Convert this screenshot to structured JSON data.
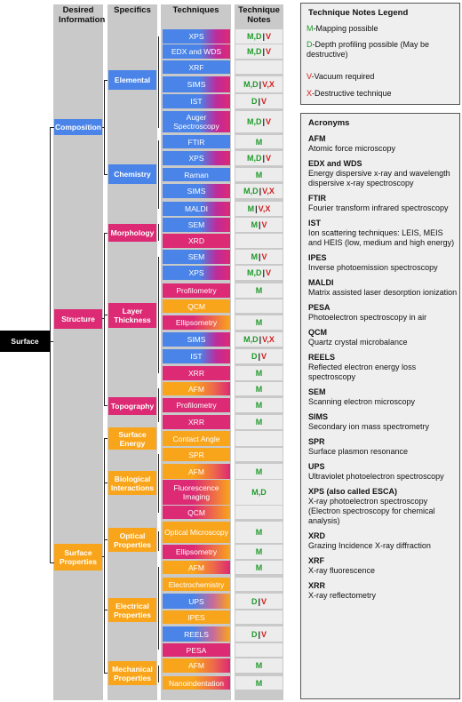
{
  "headers": {
    "desired": "Desired Information",
    "specifics": "Specifics",
    "techniques": "Techniques",
    "notes": "Technique Notes"
  },
  "root": "Surface",
  "categories": [
    "Composition",
    "Structure",
    "Surface Properties"
  ],
  "specifics": [
    "Elemental",
    "Chemistry",
    "Morphology",
    "Layer Thickness",
    "Topography",
    "Surface Energy",
    "Biological Interactions",
    "Optical Properties",
    "Electrical Properties",
    "Mechanical Properties"
  ],
  "techniques": [
    {
      "label": "XPS",
      "note": "M,D | V"
    },
    {
      "label": "EDX and WDS",
      "note": "M,D | V"
    },
    {
      "label": "XRF",
      "note": ""
    },
    {
      "label": "SIMS",
      "note": "M,D | V,X"
    },
    {
      "label": "IST",
      "note": "D | V"
    },
    {
      "label": "Auger Spectroscopy",
      "note": "M,D | V"
    },
    {
      "label": "FTIR",
      "note": "M"
    },
    {
      "label": "XPS",
      "note": "M,D | V"
    },
    {
      "label": "Raman",
      "note": "M"
    },
    {
      "label": "SIMS",
      "note": "M,D | V,X"
    },
    {
      "label": "MALDI",
      "note": "M | V,X"
    },
    {
      "label": "SEM",
      "note": "M | V"
    },
    {
      "label": "XRD",
      "note": ""
    },
    {
      "label": "SEM",
      "note": "M | V"
    },
    {
      "label": "XPS",
      "note": "M,D | V"
    },
    {
      "label": "Profilometry",
      "note": "M"
    },
    {
      "label": "QCM",
      "note": ""
    },
    {
      "label": "Ellipsometry",
      "note": "M"
    },
    {
      "label": "SIMS",
      "note": "M,D | V,X"
    },
    {
      "label": "IST",
      "note": "D | V"
    },
    {
      "label": "XRR",
      "note": "M"
    },
    {
      "label": "AFM",
      "note": "M"
    },
    {
      "label": "Profilometry",
      "note": "M"
    },
    {
      "label": "XRR",
      "note": "M"
    },
    {
      "label": "Contact Angle",
      "note": ""
    },
    {
      "label": "SPR",
      "note": ""
    },
    {
      "label": "AFM",
      "note": "M"
    },
    {
      "label": "Fluorescence Imaging",
      "note": "M,D"
    },
    {
      "label": "QCM",
      "note": ""
    },
    {
      "label": "Optical Microscopy",
      "note": "M"
    },
    {
      "label": "Ellipsometry",
      "note": "M"
    },
    {
      "label": "AFM",
      "note": "M"
    },
    {
      "label": "Electrochemistry",
      "note": ""
    },
    {
      "label": "UPS",
      "note": "D | V"
    },
    {
      "label": "IPES",
      "note": ""
    },
    {
      "label": "REELS",
      "note": "D | V"
    },
    {
      "label": "PESA",
      "note": ""
    },
    {
      "label": "AFM",
      "note": "M"
    },
    {
      "label": "Nanoindentation",
      "note": "M"
    }
  ],
  "legend": {
    "title": "Technique Notes Legend",
    "items": [
      {
        "key": "M",
        "text": "-Mapping possible"
      },
      {
        "key": "D",
        "text": "-Depth profiling possible (May be destructive)"
      },
      {
        "key": "V",
        "text": "-Vacuum required"
      },
      {
        "key": "X",
        "text": "-Destructive technique"
      }
    ]
  },
  "acronyms": {
    "title": "Acronyms",
    "items": [
      {
        "term": "AFM",
        "def": "Atomic force microscopy"
      },
      {
        "term": "EDX and WDS",
        "def": "Energy dispersive x-ray and wavelength dispersive x-ray spectroscopy"
      },
      {
        "term": "FTIR",
        "def": "Fourier transform infrared spectroscopy"
      },
      {
        "term": "IST",
        "def": "Ion scattering techniques: LEIS, MEIS and HEIS (low, medium and high energy)"
      },
      {
        "term": "IPES",
        "def": "Inverse photoemission spectroscopy"
      },
      {
        "term": "MALDI",
        "def": "Matrix assisted laser desorption ionization"
      },
      {
        "term": "PESA",
        "def": "Photoelectron spectroscopy in air"
      },
      {
        "term": "QCM",
        "def": "Quartz crystal microbalance"
      },
      {
        "term": "REELS",
        "def": "Reflected electron energy loss spectroscopy"
      },
      {
        "term": "SEM",
        "def": "Scanning electron microscopy"
      },
      {
        "term": "SIMS",
        "def": "Secondary ion mass spectrometry"
      },
      {
        "term": "SPR",
        "def": "Surface plasmon resonance"
      },
      {
        "term": "UPS",
        "def": "Ultraviolet photoelectron spectroscopy"
      },
      {
        "term": "XPS (also called ESCA)",
        "def": "X-ray photoelectron spectroscopy (Electron spectroscopy for chemical analysis)"
      },
      {
        "term": "XRD",
        "def": "Grazing Incidence X-ray diffraction"
      },
      {
        "term": "XRF",
        "def": "X-ray fluorescence"
      },
      {
        "term": "XRR",
        "def": "X-ray reflectometry"
      }
    ]
  },
  "colors": {
    "blue": "#4a84e8",
    "pink": "#dc2a74",
    "orange": "#f9a51b",
    "green": "#1f9a2a",
    "red": "#d21d1d"
  }
}
